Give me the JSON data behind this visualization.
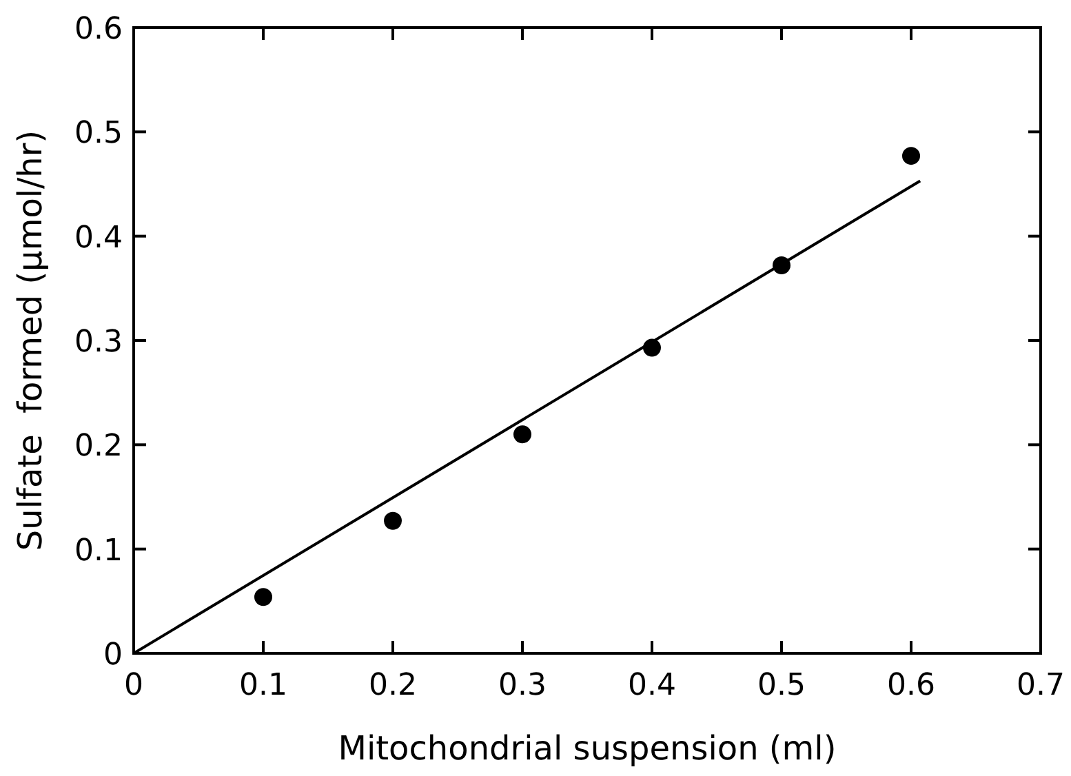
{
  "chart_data": {
    "type": "scatter",
    "xlabel": "Mitochondrial suspension (ml)",
    "ylabel": "Sulfate  formed (µmol/hr)",
    "xlim": [
      0,
      0.7
    ],
    "ylim": [
      0,
      0.6
    ],
    "xticks": [
      0,
      0.1,
      0.2,
      0.3,
      0.4,
      0.5,
      0.6,
      0.7
    ],
    "yticks": [
      0,
      0.1,
      0.2,
      0.3,
      0.4,
      0.5,
      0.6
    ],
    "series": [
      {
        "marker": "circle",
        "color": "#000000",
        "x": [
          0.1,
          0.2,
          0.3,
          0.4,
          0.5,
          0.6
        ],
        "values": [
          0.054,
          0.127,
          0.21,
          0.293,
          0.372,
          0.477
        ]
      },
      {
        "type": "line",
        "marker": "none",
        "color": "#000000",
        "x": [
          0,
          0.607
        ],
        "values": [
          0,
          0.453
        ]
      }
    ]
  }
}
